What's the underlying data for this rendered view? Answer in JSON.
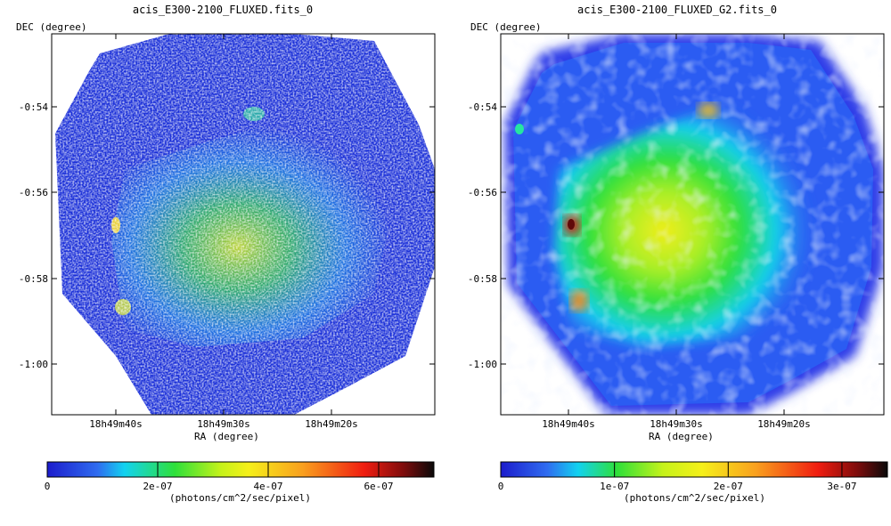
{
  "chart_data": [
    {
      "type": "heatmap",
      "title": "acis_E300-2100_FLUXED.fits_0",
      "xlabel": "RA (degree)",
      "ylabel": "DEC (degree)",
      "x_ticks": [
        "18h49m40s",
        "18h49m30s",
        "18h49m20s"
      ],
      "y_ticks": [
        "-0:54",
        "-0:56",
        "-0:58",
        "-1:00"
      ],
      "colorbar": {
        "ticks": [
          "0",
          "2e-07",
          "4e-07",
          "6e-07"
        ],
        "tick_values": [
          0,
          2e-07,
          4e-07,
          6e-07
        ],
        "max": 7e-07,
        "unit": "(photons/cm^2/sec/pixel)",
        "colormap": "blue-cyan-green-yellow-orange-red-black"
      },
      "image_style": "noisy unsmoothed counts"
    },
    {
      "type": "heatmap",
      "title": "acis_E300-2100_FLUXED_G2.fits_0",
      "xlabel": "RA (degree)",
      "ylabel": "DEC (degree)",
      "x_ticks": [
        "18h49m40s",
        "18h49m30s",
        "18h49m20s"
      ],
      "y_ticks": [
        "-0:54",
        "-0:56",
        "-0:58",
        "-1:00"
      ],
      "colorbar": {
        "ticks": [
          "0",
          "1e-07",
          "2e-07",
          "3e-07"
        ],
        "tick_values": [
          0,
          1e-07,
          2e-07,
          3e-07
        ],
        "max": 3.4e-07,
        "unit": "(photons/cm^2/sec/pixel)",
        "colormap": "blue-cyan-green-yellow-orange-red-black"
      },
      "image_style": "gaussian smoothed"
    }
  ]
}
